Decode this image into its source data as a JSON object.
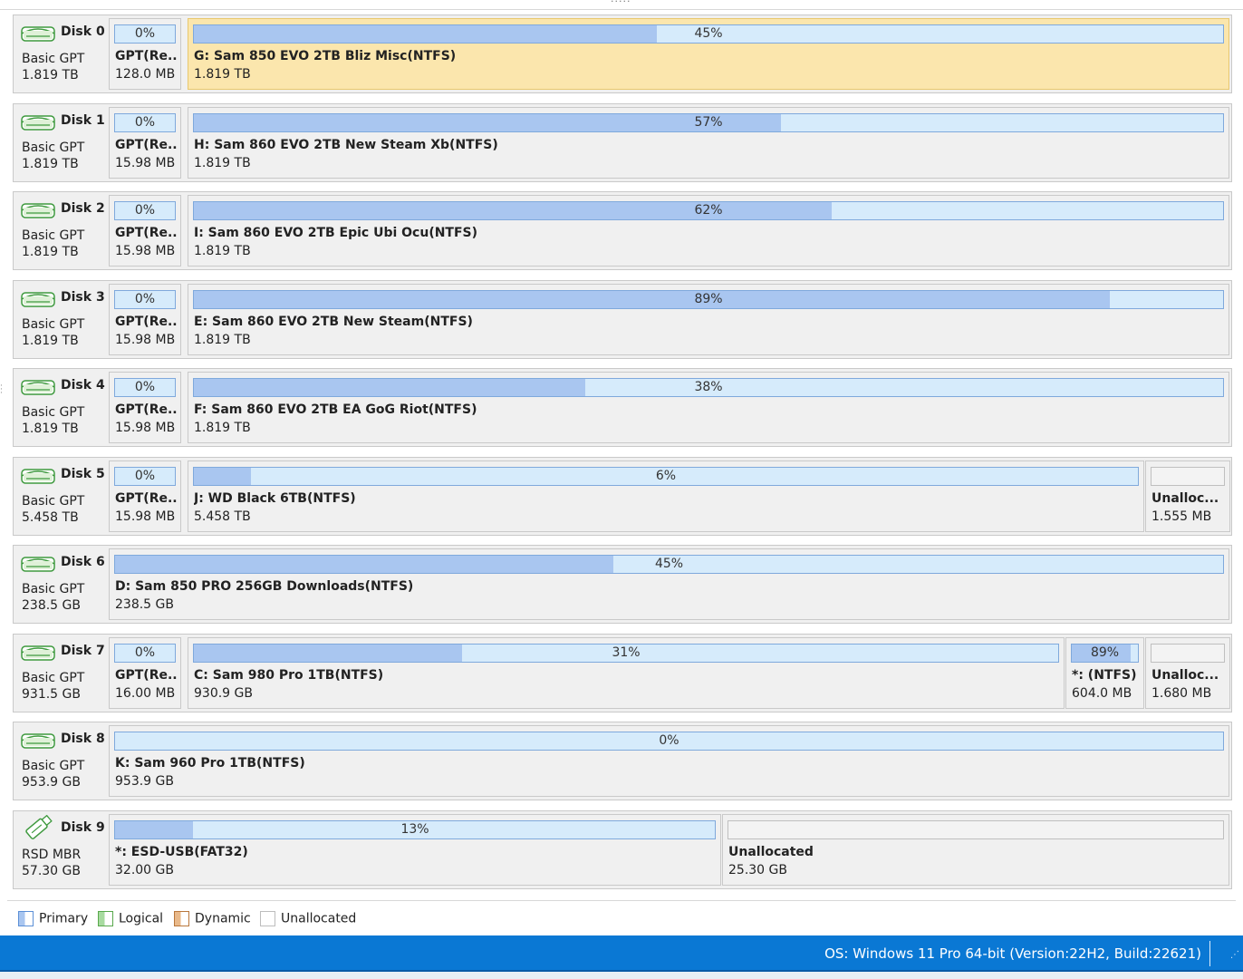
{
  "colors": {
    "accent": "#0a78d4",
    "selected": "#fbe6ad",
    "used": "#a9c6f0",
    "free": "#d6ebfb"
  },
  "disks": [
    {
      "name": "Disk 0",
      "type": "Basic GPT",
      "size": "1.819 TB",
      "icon": "hard-drive-icon",
      "selected_partition": 1,
      "partitions": [
        {
          "label": "GPT(Re...",
          "size": "128.0 MB",
          "percent_text": "0%",
          "used_fraction": 0
        },
        {
          "label": "G: Sam 850 EVO 2TB Bliz Misc(NTFS)",
          "size": "1.819 TB",
          "percent_text": "45%",
          "used_fraction": 0.45
        }
      ]
    },
    {
      "name": "Disk 1",
      "type": "Basic GPT",
      "size": "1.819 TB",
      "icon": "hard-drive-icon",
      "partitions": [
        {
          "label": "GPT(Re...",
          "size": "15.98 MB",
          "percent_text": "0%",
          "used_fraction": 0
        },
        {
          "label": "H: Sam 860 EVO 2TB New Steam Xb(NTFS)",
          "size": "1.819 TB",
          "percent_text": "57%",
          "used_fraction": 0.57
        }
      ]
    },
    {
      "name": "Disk 2",
      "type": "Basic GPT",
      "size": "1.819 TB",
      "icon": "hard-drive-icon",
      "partitions": [
        {
          "label": "GPT(Re...",
          "size": "15.98 MB",
          "percent_text": "0%",
          "used_fraction": 0
        },
        {
          "label": "I: Sam 860 EVO 2TB Epic Ubi Ocu(NTFS)",
          "size": "1.819 TB",
          "percent_text": "62%",
          "used_fraction": 0.62
        }
      ]
    },
    {
      "name": "Disk 3",
      "type": "Basic GPT",
      "size": "1.819 TB",
      "icon": "hard-drive-icon",
      "partitions": [
        {
          "label": "GPT(Re...",
          "size": "15.98 MB",
          "percent_text": "0%",
          "used_fraction": 0
        },
        {
          "label": "E: Sam 860 EVO 2TB New Steam(NTFS)",
          "size": "1.819 TB",
          "percent_text": "89%",
          "used_fraction": 0.89
        }
      ]
    },
    {
      "name": "Disk 4",
      "type": "Basic GPT",
      "size": "1.819 TB",
      "icon": "hard-drive-icon",
      "partitions": [
        {
          "label": "GPT(Re...",
          "size": "15.98 MB",
          "percent_text": "0%",
          "used_fraction": 0
        },
        {
          "label": "F: Sam 860 EVO 2TB EA GoG Riot(NTFS)",
          "size": "1.819 TB",
          "percent_text": "38%",
          "used_fraction": 0.38
        }
      ]
    },
    {
      "name": "Disk 5",
      "type": "Basic GPT",
      "size": "5.458 TB",
      "icon": "hard-drive-icon",
      "partitions": [
        {
          "label": "GPT(Re...",
          "size": "15.98 MB",
          "percent_text": "0%",
          "used_fraction": 0
        },
        {
          "label": "J: WD Black 6TB(NTFS)",
          "size": "5.458 TB",
          "percent_text": "6%",
          "used_fraction": 0.06
        },
        {
          "label": "Unalloc...",
          "size": "1.555 MB",
          "percent_text": "",
          "used_fraction": 0,
          "unallocated": true
        }
      ]
    },
    {
      "name": "Disk 6",
      "type": "Basic GPT",
      "size": "238.5 GB",
      "icon": "hard-drive-icon",
      "partitions": [
        {
          "label": "D: Sam 850 PRO 256GB Downloads(NTFS)",
          "size": "238.5 GB",
          "percent_text": "45%",
          "used_fraction": 0.45
        }
      ]
    },
    {
      "name": "Disk 7",
      "type": "Basic GPT",
      "size": "931.5 GB",
      "icon": "hard-drive-icon",
      "partitions": [
        {
          "label": "GPT(Re...",
          "size": "16.00 MB",
          "percent_text": "0%",
          "used_fraction": 0
        },
        {
          "label": "C: Sam 980 Pro 1TB(NTFS)",
          "size": "930.9 GB",
          "percent_text": "31%",
          "used_fraction": 0.31
        },
        {
          "label": "*: (NTFS)",
          "size": "604.0 MB",
          "percent_text": "89%",
          "used_fraction": 0.89
        },
        {
          "label": "Unalloc...",
          "size": "1.680 MB",
          "percent_text": "",
          "used_fraction": 0,
          "unallocated": true
        }
      ]
    },
    {
      "name": "Disk 8",
      "type": "Basic GPT",
      "size": "953.9 GB",
      "icon": "hard-drive-icon",
      "partitions": [
        {
          "label": "K: Sam 960 Pro 1TB(NTFS)",
          "size": "953.9 GB",
          "percent_text": "0%",
          "used_fraction": 0
        }
      ]
    },
    {
      "name": "Disk 9",
      "type": "RSD MBR",
      "size": "57.30 GB",
      "icon": "usb-drive-icon",
      "partitions": [
        {
          "label": "*: ESD-USB(FAT32)",
          "size": "32.00 GB",
          "percent_text": "13%",
          "used_fraction": 0.13
        },
        {
          "label": "Unallocated",
          "size": "25.30 GB",
          "percent_text": "",
          "used_fraction": 0,
          "unallocated": true
        }
      ]
    }
  ],
  "legend": [
    {
      "label": "Primary",
      "color": "#a9c6f0",
      "border": "#5b8fd6"
    },
    {
      "label": "Logical",
      "color": "#a8dba0",
      "border": "#58a84c"
    },
    {
      "label": "Dynamic",
      "color": "#e9b98a",
      "border": "#b9773c"
    },
    {
      "label": "Unallocated",
      "color": "#ffffff",
      "border": "#bdbdbd"
    }
  ],
  "status": {
    "os": "OS: Windows 11 Pro 64-bit (Version:22H2, Build:22621)"
  }
}
